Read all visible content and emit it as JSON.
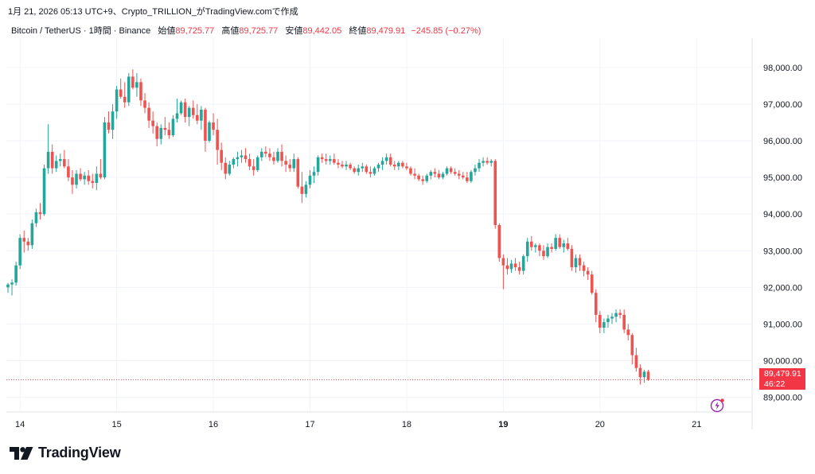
{
  "header": {
    "published": "1月 21, 2026 05:13 UTC+9、Crypto_TRILLION_がTradingView.comで作成"
  },
  "legend": {
    "symbol": "Bitcoin / TetherUS · 1時間 · Binance",
    "open_label": "始値",
    "open_value": "89,725.77",
    "high_label": "高値",
    "high_value": "89,725.77",
    "low_label": "安値",
    "low_value": "89,442.05",
    "close_label": "終値",
    "close_value": "89,479.91",
    "change": "−245.85 (−0.27%)"
  },
  "price_tag": {
    "price": "89,479.91",
    "countdown": "46:22"
  },
  "brand": {
    "name": "TradingView"
  },
  "colors": {
    "up": "#26a69a",
    "down": "#ef5350",
    "grid": "#f0f3fa",
    "axis_text": "#131722"
  },
  "chart_data": {
    "type": "candlestick",
    "title": "Bitcoin / TetherUS · 1時間 · Binance",
    "ylim": [
      88600,
      98800
    ],
    "y_ticks": [
      "98,000.00",
      "97,000.00",
      "96,000.00",
      "95,000.00",
      "94,000.00",
      "93,000.00",
      "92,000.00",
      "91,000.00",
      "90,000.00",
      "89,000.00"
    ],
    "x_ticks": [
      {
        "label": "14",
        "index": 3
      },
      {
        "label": "15",
        "index": 27
      },
      {
        "label": "16",
        "index": 51
      },
      {
        "label": "17",
        "index": 75
      },
      {
        "label": "18",
        "index": 99
      },
      {
        "label": "19",
        "index": 123
      },
      {
        "label": "20",
        "index": 147
      },
      {
        "label": "21",
        "index": 171
      }
    ],
    "last_price": 89479.91,
    "grid": true,
    "candles": [
      [
        92000,
        92120,
        91850,
        92080
      ],
      [
        92080,
        92220,
        91780,
        92130
      ],
      [
        92130,
        92700,
        92050,
        92600
      ],
      [
        92600,
        93450,
        92500,
        93350
      ],
      [
        93350,
        93550,
        92950,
        93250
      ],
      [
        93250,
        93350,
        93000,
        93150
      ],
      [
        93150,
        93850,
        93050,
        93750
      ],
      [
        93750,
        94150,
        93650,
        94050
      ],
      [
        94050,
        94300,
        93850,
        94000
      ],
      [
        94000,
        95350,
        93950,
        95250
      ],
      [
        95250,
        96450,
        95100,
        95700
      ],
      [
        95700,
        95900,
        95100,
        95250
      ],
      [
        95250,
        95600,
        95150,
        95450
      ],
      [
        95450,
        95650,
        95300,
        95500
      ],
      [
        95500,
        95750,
        95250,
        95300
      ],
      [
        95300,
        95500,
        94900,
        95000
      ],
      [
        95000,
        95200,
        94550,
        94800
      ],
      [
        94800,
        95200,
        94700,
        95100
      ],
      [
        95100,
        95250,
        94900,
        94950
      ],
      [
        94950,
        95150,
        94800,
        95050
      ],
      [
        95050,
        95200,
        94800,
        94900
      ],
      [
        94900,
        95100,
        94700,
        94850
      ],
      [
        94850,
        95300,
        94650,
        95100
      ],
      [
        95100,
        95500,
        94950,
        95000
      ],
      [
        95000,
        96650,
        94950,
        96500
      ],
      [
        96500,
        96800,
        96200,
        96300
      ],
      [
        96300,
        97000,
        96050,
        96800
      ],
      [
        96800,
        97500,
        96600,
        97400
      ],
      [
        97400,
        97700,
        97150,
        97200
      ],
      [
        97200,
        97600,
        96900,
        97050
      ],
      [
        97050,
        97850,
        96950,
        97750
      ],
      [
        97750,
        97950,
        97400,
        97450
      ],
      [
        97450,
        97850,
        97200,
        97600
      ],
      [
        97600,
        97700,
        96950,
        97100
      ],
      [
        97100,
        97300,
        96750,
        96900
      ],
      [
        96900,
        97050,
        96350,
        96550
      ],
      [
        96550,
        96800,
        96200,
        96400
      ],
      [
        96400,
        96500,
        95850,
        96050
      ],
      [
        96050,
        96450,
        95900,
        96350
      ],
      [
        96350,
        96650,
        96150,
        96300
      ],
      [
        96300,
        96500,
        96050,
        96150
      ],
      [
        96150,
        96700,
        96100,
        96600
      ],
      [
        96600,
        97150,
        96500,
        96750
      ],
      [
        96750,
        97100,
        96700,
        97050
      ],
      [
        97050,
        97150,
        96500,
        96650
      ],
      [
        96650,
        96950,
        96400,
        96900
      ],
      [
        96900,
        97100,
        96600,
        96700
      ],
      [
        96700,
        97000,
        96450,
        96550
      ],
      [
        96550,
        96950,
        96300,
        96850
      ],
      [
        96850,
        96900,
        95700,
        96000
      ],
      [
        96000,
        96550,
        95950,
        96500
      ],
      [
        96500,
        96750,
        96150,
        96300
      ],
      [
        96300,
        96600,
        95350,
        95750
      ],
      [
        95750,
        95950,
        95200,
        95400
      ],
      [
        95400,
        95550,
        94950,
        95100
      ],
      [
        95100,
        95450,
        95050,
        95350
      ],
      [
        95350,
        95550,
        95250,
        95500
      ],
      [
        95500,
        95700,
        95300,
        95550
      ],
      [
        95550,
        95750,
        95400,
        95600
      ],
      [
        95600,
        95800,
        95400,
        95500
      ],
      [
        95500,
        95650,
        95200,
        95300
      ],
      [
        95300,
        95500,
        95050,
        95200
      ],
      [
        95200,
        95600,
        95150,
        95550
      ],
      [
        95550,
        95800,
        95450,
        95700
      ],
      [
        95700,
        95850,
        95550,
        95650
      ],
      [
        95650,
        95800,
        95450,
        95550
      ],
      [
        95550,
        95700,
        95350,
        95450
      ],
      [
        95450,
        95800,
        95400,
        95700
      ],
      [
        95700,
        95900,
        95300,
        95450
      ],
      [
        95450,
        95600,
        95150,
        95350
      ],
      [
        95350,
        95500,
        95150,
        95250
      ],
      [
        95250,
        95650,
        95150,
        95500
      ],
      [
        95500,
        95550,
        94700,
        94750
      ],
      [
        94750,
        95150,
        94300,
        94550
      ],
      [
        94550,
        94900,
        94450,
        94800
      ],
      [
        94800,
        95200,
        94700,
        95050
      ],
      [
        95050,
        95300,
        94850,
        95150
      ],
      [
        95150,
        95600,
        95050,
        95550
      ],
      [
        95550,
        95650,
        95400,
        95500
      ],
      [
        95500,
        95650,
        95350,
        95450
      ],
      [
        95450,
        95600,
        95350,
        95500
      ],
      [
        95500,
        95650,
        95350,
        95400
      ],
      [
        95400,
        95500,
        95250,
        95350
      ],
      [
        95350,
        95450,
        95250,
        95300
      ],
      [
        95300,
        95450,
        95200,
        95350
      ],
      [
        95350,
        95400,
        95200,
        95250
      ],
      [
        95250,
        95300,
        95100,
        95150
      ],
      [
        95150,
        95350,
        95050,
        95250
      ],
      [
        95250,
        95400,
        95150,
        95300
      ],
      [
        95300,
        95350,
        95100,
        95150
      ],
      [
        95150,
        95300,
        95000,
        95100
      ],
      [
        95100,
        95300,
        95050,
        95250
      ],
      [
        95250,
        95400,
        95150,
        95350
      ],
      [
        95350,
        95550,
        95200,
        95450
      ],
      [
        95450,
        95650,
        95350,
        95550
      ],
      [
        95550,
        95650,
        95300,
        95350
      ],
      [
        95350,
        95450,
        95200,
        95300
      ],
      [
        95300,
        95450,
        95200,
        95400
      ],
      [
        95400,
        95450,
        95250,
        95300
      ],
      [
        95300,
        95400,
        95200,
        95250
      ],
      [
        95250,
        95300,
        95050,
        95100
      ],
      [
        95100,
        95250,
        94950,
        95050
      ],
      [
        95050,
        95100,
        94900,
        94950
      ],
      [
        94950,
        95050,
        94800,
        94900
      ],
      [
        94900,
        95100,
        94850,
        95050
      ],
      [
        95050,
        95200,
        94950,
        95150
      ],
      [
        95150,
        95250,
        95000,
        95100
      ],
      [
        95100,
        95200,
        94950,
        95000
      ],
      [
        95000,
        95150,
        94950,
        95100
      ],
      [
        95100,
        95300,
        95050,
        95250
      ],
      [
        95250,
        95300,
        95100,
        95150
      ],
      [
        95150,
        95250,
        95050,
        95100
      ],
      [
        95100,
        95200,
        94950,
        95050
      ],
      [
        95050,
        95150,
        94950,
        95000
      ],
      [
        95000,
        95150,
        94850,
        94900
      ],
      [
        94900,
        95200,
        94850,
        95150
      ],
      [
        95150,
        95350,
        95050,
        95250
      ],
      [
        95250,
        95500,
        95150,
        95400
      ],
      [
        95400,
        95550,
        95300,
        95450
      ],
      [
        95450,
        95550,
        95350,
        95400
      ],
      [
        95400,
        95500,
        95300,
        95450
      ],
      [
        95450,
        95500,
        93600,
        93700
      ],
      [
        93700,
        93750,
        92700,
        92800
      ],
      [
        92800,
        92900,
        91950,
        92600
      ],
      [
        92600,
        92800,
        92350,
        92500
      ],
      [
        92500,
        92750,
        92400,
        92650
      ],
      [
        92650,
        92800,
        92450,
        92550
      ],
      [
        92550,
        92700,
        92350,
        92450
      ],
      [
        92450,
        92900,
        92350,
        92850
      ],
      [
        92850,
        93350,
        92700,
        93250
      ],
      [
        93250,
        93400,
        93000,
        93100
      ],
      [
        93100,
        93200,
        92950,
        93150
      ],
      [
        93150,
        93200,
        92850,
        93000
      ],
      [
        93000,
        93150,
        92750,
        92850
      ],
      [
        92850,
        93200,
        92800,
        93100
      ],
      [
        93100,
        93200,
        92950,
        93050
      ],
      [
        93050,
        93450,
        93000,
        93350
      ],
      [
        93350,
        93450,
        93050,
        93100
      ],
      [
        93100,
        93300,
        92950,
        93200
      ],
      [
        93200,
        93350,
        93000,
        93050
      ],
      [
        93050,
        93150,
        92450,
        92550
      ],
      [
        92550,
        92900,
        92400,
        92800
      ],
      [
        92800,
        92900,
        92450,
        92600
      ],
      [
        92600,
        92700,
        92300,
        92450
      ],
      [
        92450,
        92550,
        92200,
        92350
      ],
      [
        92350,
        92450,
        91800,
        91850
      ],
      [
        91850,
        91950,
        91050,
        91250
      ],
      [
        91250,
        91350,
        90750,
        90900
      ],
      [
        90900,
        91150,
        90750,
        91050
      ],
      [
        91050,
        91250,
        90900,
        91150
      ],
      [
        91150,
        91300,
        91000,
        91200
      ],
      [
        91200,
        91400,
        91050,
        91300
      ],
      [
        91300,
        91400,
        91150,
        91250
      ],
      [
        91250,
        91400,
        90750,
        90850
      ],
      [
        90850,
        91000,
        90550,
        90700
      ],
      [
        90700,
        90750,
        89900,
        90150
      ],
      [
        90150,
        90350,
        89700,
        89800
      ],
      [
        89800,
        89900,
        89350,
        89550
      ],
      [
        89550,
        89750,
        89400,
        89700
      ],
      [
        89700,
        89750,
        89450,
        89480
      ]
    ]
  }
}
